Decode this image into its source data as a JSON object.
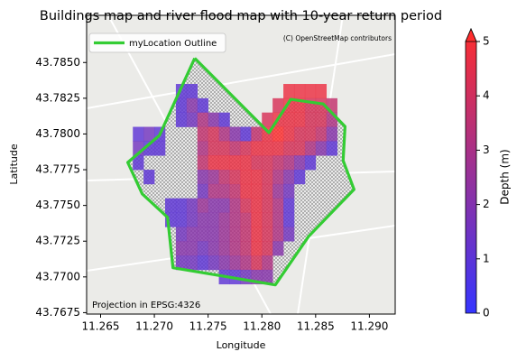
{
  "chart_data": {
    "type": "map",
    "title": "Buildings map and river flood map with 10-year return period",
    "xlabel": "Longitude",
    "ylabel": "Latitude",
    "xlim": [
      11.2637,
      11.2924
    ],
    "ylim": [
      43.7674,
      43.7883
    ],
    "xticks": [
      {
        "value": 11.265,
        "label": "11.265"
      },
      {
        "value": 11.27,
        "label": "11.270"
      },
      {
        "value": 11.275,
        "label": "11.275"
      },
      {
        "value": 11.28,
        "label": "11.280"
      },
      {
        "value": 11.285,
        "label": "11.285"
      },
      {
        "value": 11.29,
        "label": "11.290"
      }
    ],
    "yticks": [
      {
        "value": 43.7675,
        "label": "43.7675"
      },
      {
        "value": 43.77,
        "label": "43.7700"
      },
      {
        "value": 43.7725,
        "label": "43.7725"
      },
      {
        "value": 43.775,
        "label": "43.7750"
      },
      {
        "value": 43.7775,
        "label": "43.7775"
      },
      {
        "value": 43.78,
        "label": "43.7800"
      },
      {
        "value": 43.7825,
        "label": "43.7825"
      },
      {
        "value": 43.785,
        "label": "43.7850"
      }
    ],
    "attribution": "(C) OpenStreetMap contributors",
    "projection_note": "Projection in EPSG:4326",
    "legend": "upper left",
    "outline": {
      "name": "myLocation Outline",
      "color": "#33cc33",
      "lon": [
        11.27375,
        11.28066,
        11.28268,
        11.28571,
        11.28773,
        11.28756,
        11.28857,
        11.28436,
        11.28125,
        11.27173,
        11.27123,
        11.26887,
        11.26753,
        11.27047,
        11.27375
      ],
      "lat": [
        43.7853,
        43.78009,
        43.78242,
        43.7821,
        43.78053,
        43.77814,
        43.77612,
        43.77285,
        43.76944,
        43.77064,
        43.77417,
        43.77581,
        43.77801,
        43.7799,
        43.7853
      ]
    },
    "lon": [
      11.2685,
      11.2695,
      11.2705,
      11.2715,
      11.2725,
      11.2735,
      11.2745,
      11.2755,
      11.2765,
      11.2775,
      11.2785,
      11.2795,
      11.2805,
      11.2815,
      11.2825,
      11.2835,
      11.2845,
      11.2855,
      11.2865,
      11.2875
    ],
    "lat": [
      43.783,
      43.782,
      43.781,
      43.78,
      43.779,
      43.778,
      43.777,
      43.776,
      43.775,
      43.774,
      43.773,
      43.772,
      43.771,
      43.77
    ],
    "depth": [
      [
        null,
        null,
        null,
        null,
        1,
        1,
        null,
        null,
        null,
        null,
        null,
        null,
        null,
        null,
        4.5,
        4.5,
        4.5,
        4.5,
        null,
        null
      ],
      [
        null,
        null,
        null,
        null,
        1,
        2,
        1,
        null,
        null,
        null,
        null,
        null,
        null,
        4,
        4.5,
        4.5,
        4,
        4,
        3.5,
        null
      ],
      [
        null,
        null,
        null,
        null,
        1,
        1.5,
        3,
        2,
        1,
        null,
        null,
        null,
        4,
        4.5,
        4.5,
        4.5,
        4,
        4,
        3,
        null
      ],
      [
        1,
        1.5,
        1,
        null,
        null,
        null,
        3.5,
        4,
        3,
        2,
        1,
        3.5,
        4.5,
        5,
        4.5,
        4,
        4,
        3.5,
        2,
        null
      ],
      [
        1.5,
        1,
        1,
        null,
        null,
        null,
        3,
        4,
        4,
        3.5,
        4,
        4.5,
        4.5,
        4.5,
        4,
        4,
        3,
        2,
        1,
        null
      ],
      [
        1,
        null,
        null,
        null,
        null,
        null,
        3.5,
        4.5,
        4.5,
        4.5,
        4.5,
        4,
        4,
        3.5,
        3,
        2,
        1,
        null,
        null,
        null
      ],
      [
        null,
        1,
        null,
        null,
        null,
        null,
        2,
        2.5,
        3.5,
        4,
        4.5,
        4.5,
        4,
        3,
        2,
        1,
        null,
        null,
        null,
        null
      ],
      [
        null,
        null,
        null,
        null,
        null,
        null,
        1.5,
        3,
        3,
        3.5,
        4.5,
        4.5,
        4,
        2.5,
        1.5,
        null,
        null,
        null,
        null,
        null
      ],
      [
        null,
        null,
        null,
        1,
        1,
        1.5,
        2.5,
        2,
        2,
        3,
        4,
        4.5,
        4,
        3,
        1,
        null,
        null,
        null,
        null,
        null
      ],
      [
        null,
        null,
        null,
        1,
        1,
        1.5,
        2,
        2,
        2.5,
        3,
        3.5,
        4.5,
        4,
        3,
        1,
        null,
        null,
        null,
        null,
        null
      ],
      [
        null,
        null,
        null,
        null,
        1.5,
        2,
        2,
        2,
        2.5,
        3,
        3.5,
        4.5,
        4,
        3,
        1.5,
        null,
        null,
        null,
        null,
        null
      ],
      [
        null,
        null,
        null,
        null,
        2,
        2,
        1.5,
        2,
        2.5,
        3,
        3.5,
        4.5,
        4,
        2,
        null,
        null,
        null,
        null,
        null,
        null
      ],
      [
        null,
        null,
        null,
        null,
        1.5,
        1.5,
        1,
        1.5,
        2,
        2.5,
        3,
        4,
        3,
        null,
        null,
        null,
        null,
        null,
        null,
        null
      ],
      [
        null,
        null,
        null,
        null,
        null,
        null,
        null,
        null,
        1,
        1,
        1.5,
        2,
        2,
        null,
        null,
        null,
        null,
        null,
        null,
        null
      ]
    ],
    "colorbar": {
      "label": "Depth (m)",
      "lim": [
        0,
        5
      ],
      "ticks": [
        0,
        1,
        2,
        3,
        4,
        5
      ],
      "colors": [
        "#3535ff",
        "#ff2d2d"
      ]
    }
  }
}
